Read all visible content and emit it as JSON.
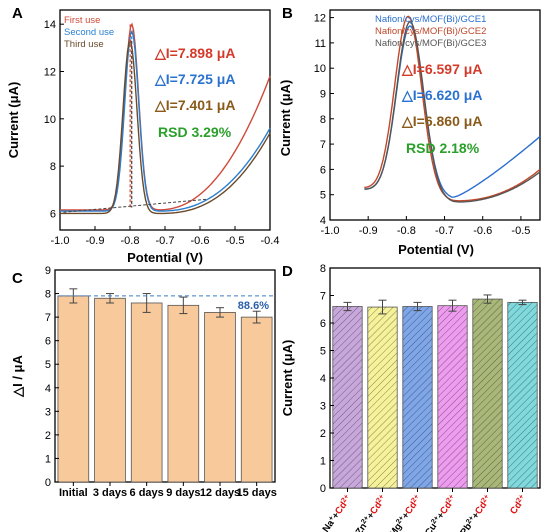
{
  "colors": {
    "first": "#d04a3a",
    "second": "#2a7fcf",
    "third": "#6b4a2a",
    "gce1": "#2a6fcf",
    "gce2": "#c0482a",
    "gce3": "#555555",
    "red_ann": "#d43a2a",
    "blue_ann": "#2a72cf",
    "brown_ann": "#8a5a1a",
    "green_ann": "#2aa02a",
    "bar_c": "#f8c99a",
    "ion_red": "#e01010"
  },
  "chart_data": [
    {
      "panel": "A",
      "type": "line",
      "xlabel": "Potential (V)",
      "ylabel": "Current (μA)",
      "xlim": [
        -1.0,
        -0.4
      ],
      "ylim": [
        5.3,
        14.6
      ],
      "xticks": [
        "-1.0",
        "-0.9",
        "-0.8",
        "-0.7",
        "-0.6",
        "-0.5",
        "-0.4"
      ],
      "yticks": [
        "6",
        "8",
        "10",
        "12",
        "14"
      ],
      "legend": [
        "First use",
        "Second use",
        "Third use"
      ],
      "annotations": [
        "△I=7.898 μA",
        "△I=7.725 μA",
        "△I=7.401 μA",
        "RSD 3.29%"
      ],
      "series": [
        {
          "name": "First use",
          "peak_x": -0.795,
          "peak_y": 14.0,
          "baseline_y": 6.1,
          "end_y": 11.8
        },
        {
          "name": "Second use",
          "peak_x": -0.795,
          "peak_y": 13.7,
          "baseline_y": 6.05,
          "end_y": 9.6
        },
        {
          "name": "Third use",
          "peak_x": -0.8,
          "peak_y": 13.3,
          "baseline_y": 6.0,
          "end_y": 9.4
        }
      ]
    },
    {
      "panel": "B",
      "type": "line",
      "xlabel": "Potential (V)",
      "ylabel": "Current (μA)",
      "xlim": [
        -1.0,
        -0.45
      ],
      "ylim": [
        4.0,
        12.3
      ],
      "xticks": [
        "-1.0",
        "-0.9",
        "-0.8",
        "-0.7",
        "-0.6",
        "-0.5"
      ],
      "yticks": [
        "4",
        "5",
        "6",
        "7",
        "8",
        "9",
        "10",
        "11",
        "12"
      ],
      "legend": [
        "Nafion/cys/MOF(Bi)/GCE1",
        "Nafion/cys/MOF(Bi)/GCE2",
        "Nafion/cys/MOF(Bi)/GCE3"
      ],
      "annotations": [
        "△I=6.597 μA",
        "△I=6.620 μA",
        "△I=6.860 μA",
        "RSD 2.18%"
      ],
      "series": [
        {
          "name": "Nafion/cys/MOF(Bi)/GCE1",
          "peak_x": -0.79,
          "peak_y": 11.5,
          "start_y": 5.2,
          "end_y": 7.3
        },
        {
          "name": "Nafion/cys/MOF(Bi)/GCE2",
          "peak_x": -0.795,
          "peak_y": 11.8,
          "start_y": 5.25,
          "end_y": 6.0
        },
        {
          "name": "Nafion/cys/MOF(Bi)/GCE3",
          "peak_x": -0.79,
          "peak_y": 11.6,
          "start_y": 5.2,
          "end_y": 5.9
        }
      ]
    },
    {
      "panel": "C",
      "type": "bar",
      "ylabel": "△I / μA",
      "ylim": [
        0,
        9
      ],
      "yticks": [
        "0",
        "1",
        "2",
        "3",
        "4",
        "5",
        "6",
        "7",
        "8",
        "9"
      ],
      "categories": [
        "Initial",
        "3 days",
        "6 days",
        "9 days",
        "12 days",
        "15 days"
      ],
      "values": [
        7.9,
        7.8,
        7.6,
        7.5,
        7.2,
        7.0
      ],
      "errors": [
        0.3,
        0.2,
        0.4,
        0.35,
        0.2,
        0.25
      ],
      "reference": 7.9,
      "annotation": "88.6%"
    },
    {
      "panel": "D",
      "type": "bar",
      "ylabel": "Current (μA)",
      "ylim": [
        0,
        8
      ],
      "yticks": [
        "0",
        "1",
        "2",
        "3",
        "4",
        "5",
        "6",
        "7",
        "8"
      ],
      "categories": [
        {
          "ion": "Na",
          "charge": "+"
        },
        {
          "ion": "Zn",
          "charge": "2+"
        },
        {
          "ion": "Mg",
          "charge": "2+"
        },
        {
          "ion": "Cu",
          "charge": "2+"
        },
        {
          "ion": "Pb",
          "charge": "2+"
        },
        {
          "ion": "",
          "charge": ""
        }
      ],
      "plus": "+",
      "target": {
        "ion": "Cd",
        "charge": "2+"
      },
      "values": [
        6.6,
        6.58,
        6.6,
        6.63,
        6.87,
        6.75
      ],
      "errors": [
        0.15,
        0.25,
        0.15,
        0.2,
        0.15,
        0.08
      ],
      "bar_colors": [
        "#c8a8dc",
        "#f6f29a",
        "#7fa6e8",
        "#ee9cef",
        "#a9b878",
        "#7fd9dd"
      ]
    }
  ]
}
